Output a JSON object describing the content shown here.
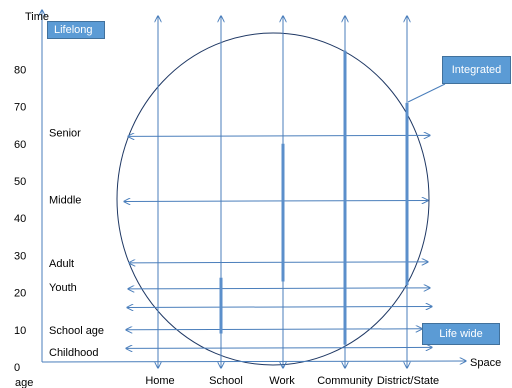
{
  "colors": {
    "axis": "#4A7EBB",
    "arrow": "#4A7EBB",
    "circle": "#1F3864",
    "bar": "#5B8FCB",
    "box_fill": "#5B9BD5",
    "box_border": "#41719C"
  },
  "labels": {
    "time_axis": "Time",
    "space_axis": "Space",
    "age_axis": "age",
    "lifelong": "Lifelong",
    "integrated": "Integrated",
    "life_wide": "Life wide"
  },
  "chart_data": {
    "type": "diagram",
    "y_ticks": [
      0,
      10,
      20,
      30,
      40,
      50,
      60,
      70,
      80
    ],
    "ylim": [
      0,
      80
    ],
    "stages": [
      {
        "label": "Childhood",
        "age": 4
      },
      {
        "label": "School age",
        "age": 10
      },
      {
        "label": "Youth",
        "age": 21.5
      },
      {
        "label": "Adult",
        "age": 28
      },
      {
        "label": "Middle",
        "age": 45
      },
      {
        "label": "Senior",
        "age": 63
      }
    ],
    "space_categories": [
      "Home",
      "School",
      "Work",
      "Community",
      "District/State"
    ],
    "horizontal_arrows_age": [
      5,
      10,
      16,
      21,
      28,
      44.5,
      62
    ],
    "bars": [
      {
        "category": "School",
        "from": 9,
        "to": 24
      },
      {
        "category": "Work",
        "from": 23,
        "to": 60
      },
      {
        "category": "Community",
        "from": 6,
        "to": 85
      },
      {
        "category": "District/State",
        "from": 22,
        "to": 71
      }
    ]
  }
}
